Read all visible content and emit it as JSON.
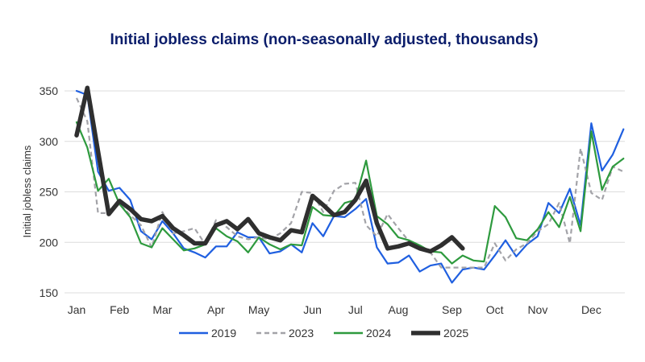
{
  "chart_data": {
    "type": "line",
    "title": "Initial jobless claims (non-seasonally adjusted, thousands)",
    "xlabel": "",
    "ylabel": "Initial jobless claims",
    "ylim": [
      150,
      350
    ],
    "yticks": [
      150,
      200,
      250,
      300,
      350
    ],
    "x_unit": "week of year",
    "month_labels": [
      {
        "label": "Jan",
        "week": 0
      },
      {
        "label": "Feb",
        "week": 4
      },
      {
        "label": "Mar",
        "week": 8
      },
      {
        "label": "Apr",
        "week": 13
      },
      {
        "label": "May",
        "week": 17
      },
      {
        "label": "Jun",
        "week": 22
      },
      {
        "label": "Jul",
        "week": 26
      },
      {
        "label": "Aug",
        "week": 30
      },
      {
        "label": "Sep",
        "week": 35
      },
      {
        "label": "Oct",
        "week": 39
      },
      {
        "label": "Nov",
        "week": 43
      },
      {
        "label": "Dec",
        "week": 48
      }
    ],
    "grid": "horizontal",
    "legend": "bottom",
    "series": [
      {
        "name": "2019",
        "color": "#1f5fe0",
        "style": "solid",
        "values": [
          350,
          346,
          270,
          251,
          254,
          242,
          211,
          203,
          221,
          209,
          194,
          190,
          185,
          196,
          196,
          210,
          205,
          205,
          189,
          191,
          198,
          190,
          219,
          206,
          226,
          225,
          233,
          243,
          195,
          179,
          180,
          187,
          171,
          177,
          179,
          160,
          173,
          175,
          173,
          187,
          202,
          186,
          198,
          206,
          239,
          229,
          253,
          217,
          318,
          271,
          287,
          312
        ]
      },
      {
        "name": "2023",
        "color": "#a3a3a8",
        "style": "dashed",
        "values": [
          343,
          320,
          229,
          229,
          238,
          227,
          217,
          195,
          230,
          209,
          211,
          214,
          198,
          222,
          215,
          206,
          203,
          205,
          203,
          209,
          219,
          250,
          249,
          230,
          251,
          258,
          259,
          217,
          206,
          228,
          214,
          201,
          193,
          190,
          175,
          175,
          175,
          175,
          175,
          199,
          182,
          193,
          199,
          211,
          218,
          239,
          199,
          293,
          249,
          242,
          275,
          270
        ]
      },
      {
        "name": "2024",
        "color": "#2e9a3e",
        "style": "solid",
        "values": [
          319,
          294,
          251,
          263,
          238,
          225,
          199,
          195,
          214,
          203,
          192,
          194,
          198,
          214,
          206,
          201,
          190,
          205,
          198,
          193,
          198,
          197,
          235,
          227,
          226,
          239,
          242,
          281,
          226,
          218,
          205,
          202,
          197,
          191,
          190,
          179,
          187,
          182,
          181,
          236,
          225,
          204,
          202,
          213,
          230,
          215,
          245,
          211,
          310,
          252,
          275,
          283
        ]
      },
      {
        "name": "2025",
        "color": "#2f2f2f",
        "style": "thick",
        "values": [
          306,
          353,
          290,
          228,
          241,
          233,
          223,
          221,
          226,
          214,
          207,
          199,
          199,
          217,
          221,
          213,
          223,
          209,
          205,
          202,
          212,
          210,
          246,
          237,
          227,
          230,
          242,
          261,
          219,
          194,
          196,
          199,
          194,
          191,
          197,
          205,
          194
        ]
      }
    ]
  }
}
